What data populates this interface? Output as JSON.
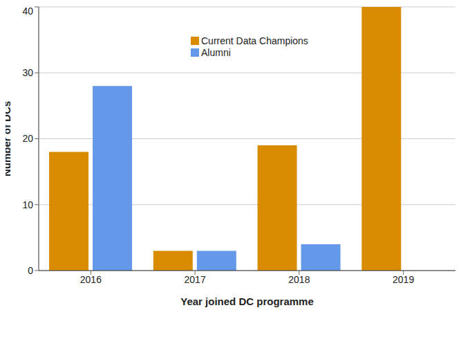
{
  "chart_data": {
    "type": "bar",
    "x_label": "Year joined DC programme",
    "y_label": "Number of DCs",
    "categories": [
      "2016",
      "2017",
      "2018",
      "2019"
    ],
    "series": [
      {
        "name": "Current Data Champions",
        "color": "#d98c00",
        "values": [
          18,
          3,
          19,
          40
        ]
      },
      {
        "name": "Alumni",
        "color": "#6399e8",
        "values": [
          28,
          3,
          4,
          null
        ]
      }
    ],
    "ylim": [
      0,
      40
    ],
    "yticks": [
      0,
      10,
      20,
      30,
      40
    ],
    "grid": true,
    "legend": "top"
  }
}
